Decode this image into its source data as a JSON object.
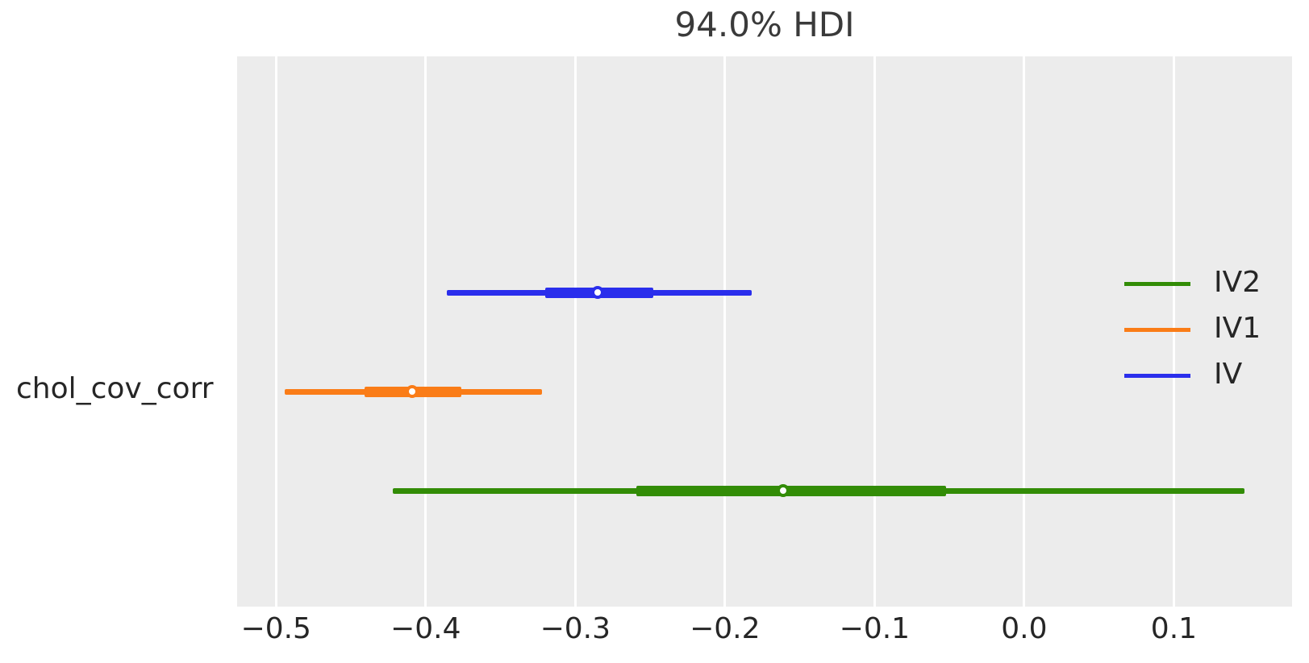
{
  "title": "94.0% HDI",
  "row_label": "chol_cov_corr",
  "colors": {
    "figure_bg": "#ffffff",
    "panel_bg": "#ececec",
    "grid": "#ffffff",
    "text": "#262626",
    "title_text": "#3a3a3a"
  },
  "legend": {
    "items": [
      {
        "label": "IV2",
        "color": "#328c06"
      },
      {
        "label": "IV1",
        "color": "#fa7c17"
      },
      {
        "label": "IV",
        "color": "#2a2eec"
      }
    ]
  },
  "chart_data": {
    "type": "forest_interval",
    "title": "94.0% HDI",
    "hdi_probability": 0.94,
    "row_label": "chol_cov_corr",
    "xlim": [
      -0.526,
      0.179
    ],
    "x_ticks": [
      -0.5,
      -0.4,
      -0.3,
      -0.2,
      -0.1,
      0.0,
      0.1
    ],
    "x_tick_labels": [
      "−0.5",
      "−0.4",
      "−0.3",
      "−0.2",
      "−0.1",
      "0.0",
      "0.1"
    ],
    "grid": "vertical-white-on-gray",
    "legend_position": "center-right",
    "series": [
      {
        "name": "IV",
        "color": "#2a2eec",
        "row": 0,
        "hdi": [
          -0.386,
          -0.182
        ],
        "thick_interval": [
          -0.32,
          -0.248
        ],
        "median": -0.285
      },
      {
        "name": "IV1",
        "color": "#fa7c17",
        "row": 1,
        "hdi": [
          -0.494,
          -0.322
        ],
        "thick_interval": [
          -0.441,
          -0.376
        ],
        "median": -0.409
      },
      {
        "name": "IV2",
        "color": "#328c06",
        "row": 2,
        "hdi": [
          -0.422,
          0.147
        ],
        "thick_interval": [
          -0.259,
          -0.052
        ],
        "median": -0.161
      }
    ]
  }
}
